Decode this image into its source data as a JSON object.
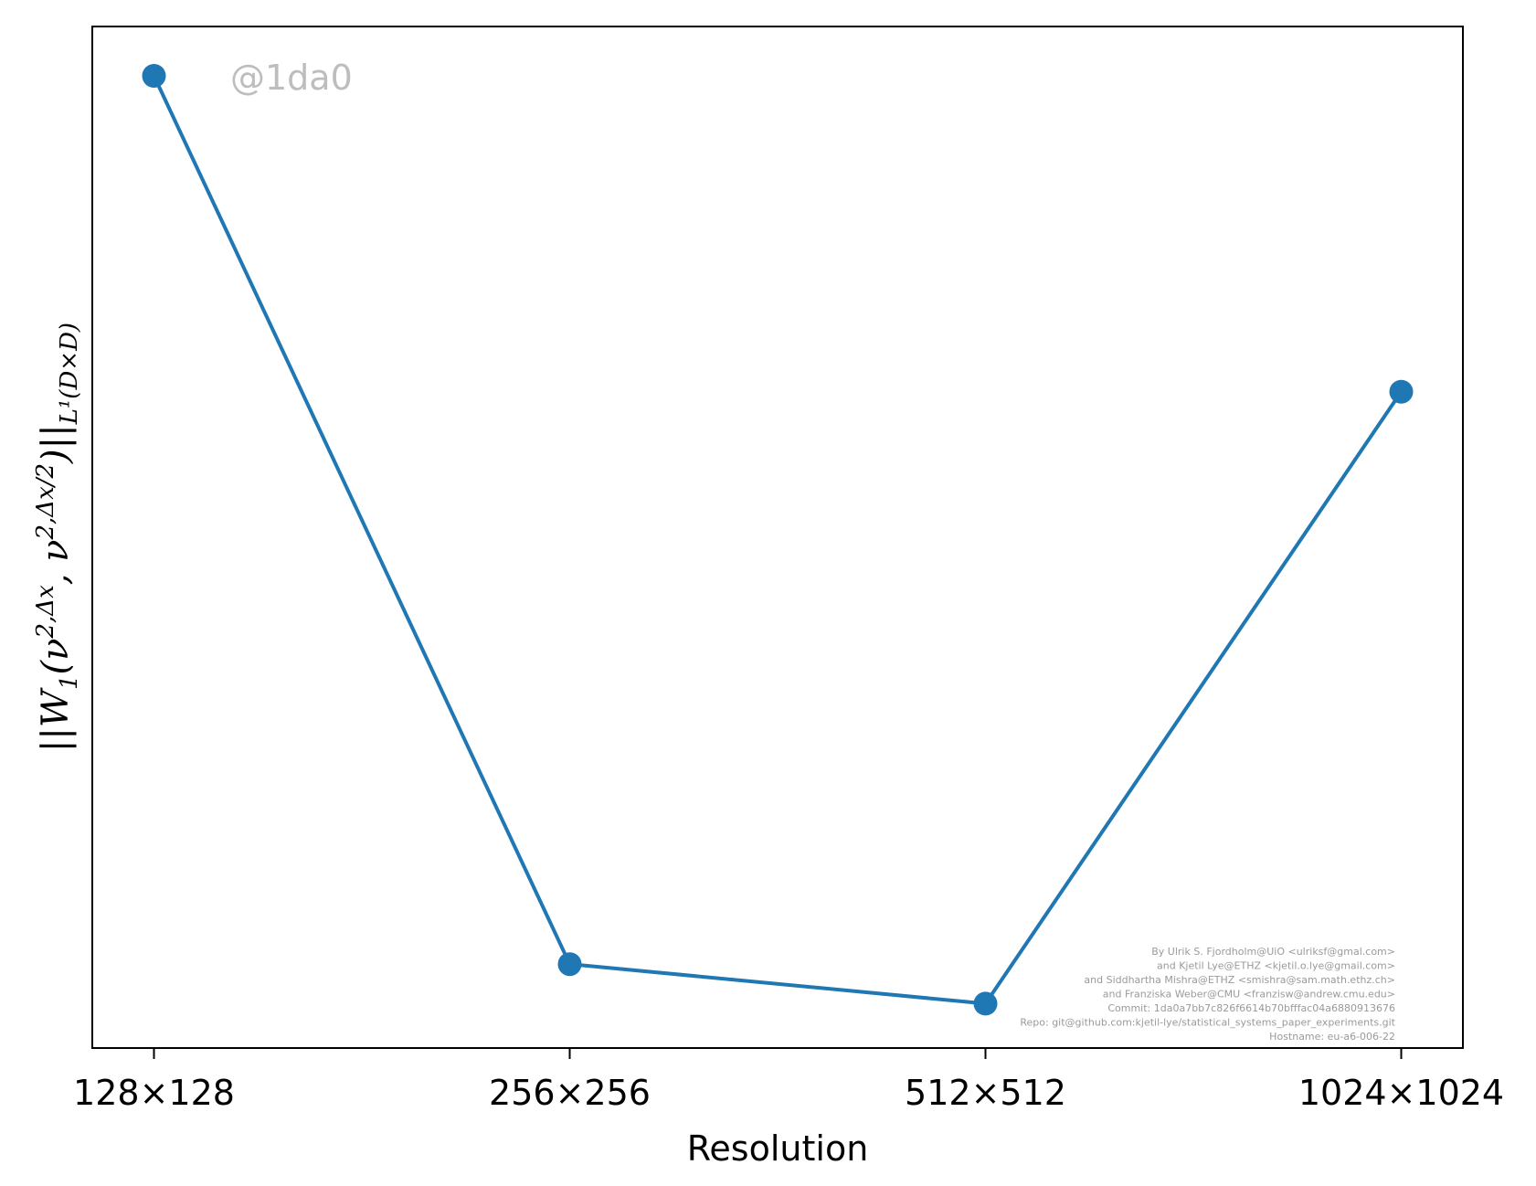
{
  "chart_data": {
    "type": "line",
    "categories": [
      "128×128",
      "256×256",
      "512×512",
      "1024×1024"
    ],
    "series": [
      {
        "values": [
          0.95,
          0.05,
          0.01,
          0.63
        ]
      }
    ],
    "xlabel": "Resolution",
    "ylabel": {
      "parts": [
        {
          "text": "||W",
          "style": "main"
        },
        {
          "text": "1",
          "style": "sub"
        },
        {
          "text": "(ν",
          "style": "main"
        },
        {
          "text": "2,Δx",
          "style": "sup"
        },
        {
          "text": ", ν",
          "style": "main"
        },
        {
          "text": "2,Δx/2",
          "style": "sup"
        },
        {
          "text": ")||",
          "style": "main"
        },
        {
          "text": "L¹(D×D)",
          "style": "sub"
        }
      ]
    },
    "yticks": "none",
    "ylim": [
      -0.035,
      1.0
    ],
    "grid": false,
    "legend": "none",
    "line_color": "#1f77b4",
    "marker": "circle"
  },
  "watermark": "@1da0",
  "credits": [
    "By Ulrik S. Fjordholm@UiO <ulriksf@gmal.com>",
    "and Kjetil Lye@ETHZ <kjetil.o.lye@gmail.com>",
    "and Siddhartha Mishra@ETHZ <smishra@sam.math.ethz.ch>",
    "and Franziska Weber@CMU <franzisw@andrew.cmu.edu>",
    "Commit: 1da0a7bb7c826f6614b70bfffac04a6880913676",
    "Repo: git@github.com:kjetil-lye/statistical_systems_paper_experiments.git",
    "Hostname: eu-a6-006-22"
  ]
}
